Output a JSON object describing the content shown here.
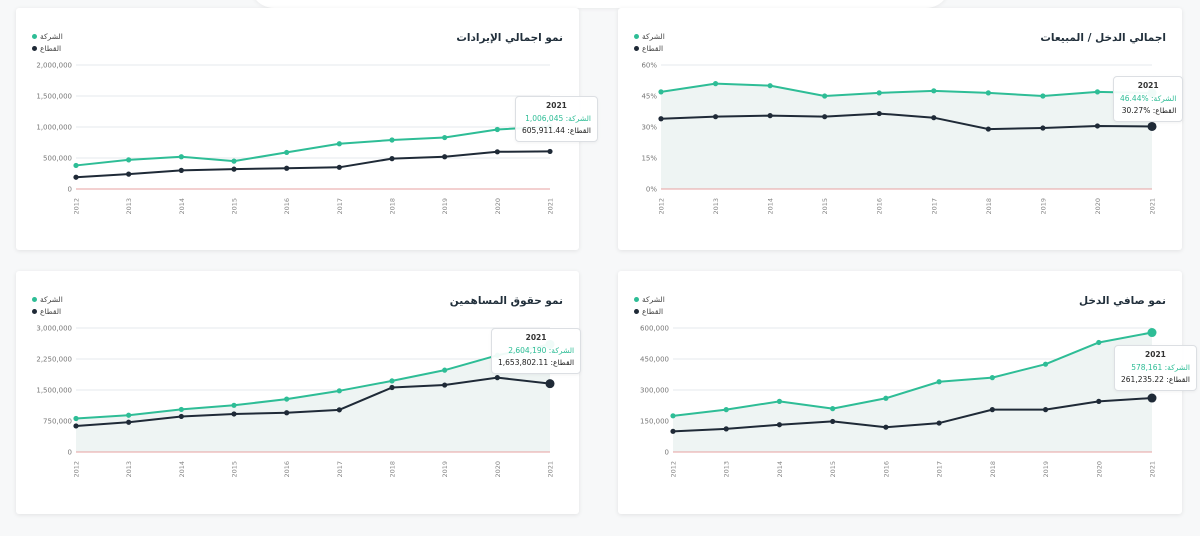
{
  "colors": {
    "company": "#2ebd96",
    "sector": "#1f2a37",
    "zero_line": "#e7a2a2",
    "fill": "#eef4f3",
    "grid": "#e6e9ec"
  },
  "legend": {
    "company_label": "الشركة",
    "sector_label": "القطاع"
  },
  "chart_data": [
    {
      "type": "line",
      "title": "نمو اجمالي الإيرادات",
      "x": [
        "2012",
        "2013",
        "2014",
        "2015",
        "2016",
        "2017",
        "2018",
        "2019",
        "2020",
        "2021"
      ],
      "y_ticks": [
        "0",
        "500,000",
        "1,000,000",
        "1,500,000",
        "2,000,000"
      ],
      "ylim": [
        0,
        2000000
      ],
      "series": [
        {
          "name": "الشركة",
          "values": [
            380000,
            470000,
            520000,
            450000,
            590000,
            730000,
            790000,
            830000,
            960000,
            1006045
          ]
        },
        {
          "name": "القطاع",
          "values": [
            190000,
            240000,
            300000,
            320000,
            335000,
            350000,
            490000,
            520000,
            600000,
            605911.44
          ]
        }
      ],
      "tooltip": {
        "year": "2021",
        "company_label": "الشركة:",
        "company_value": "1,006,045",
        "sector_label": "القطاع:",
        "sector_value": "605,911.44"
      }
    },
    {
      "type": "area",
      "title": "اجمالي الدخل / المبيعات",
      "x": [
        "2012",
        "2013",
        "2014",
        "2015",
        "2016",
        "2017",
        "2018",
        "2019",
        "2020",
        "2021"
      ],
      "y_ticks": [
        "0%",
        "15%",
        "30%",
        "45%",
        "60%"
      ],
      "ylim": [
        0,
        60
      ],
      "series": [
        {
          "name": "الشركة",
          "values": [
            47,
            51,
            50,
            45,
            46.5,
            47.5,
            46.5,
            45,
            47,
            46.44
          ]
        },
        {
          "name": "القطاع",
          "values": [
            34,
            35,
            35.5,
            35,
            36.5,
            34.5,
            29,
            29.5,
            30.5,
            30.27
          ]
        }
      ],
      "tooltip": {
        "year": "2021",
        "company_label": "الشركة:",
        "company_value": "%46.44",
        "sector_label": "القطاع:",
        "sector_value": "%30.27"
      }
    },
    {
      "type": "area",
      "title": "نمو حقوق المساهمين",
      "x": [
        "2012",
        "2013",
        "2014",
        "2015",
        "2016",
        "2017",
        "2018",
        "2019",
        "2020",
        "2021"
      ],
      "y_ticks": [
        "0",
        "750,000",
        "1,500,000",
        "2,250,000",
        "3,000,000"
      ],
      "ylim": [
        0,
        3000000
      ],
      "series": [
        {
          "name": "الشركة",
          "values": [
            810000,
            890000,
            1030000,
            1130000,
            1280000,
            1480000,
            1720000,
            1980000,
            2340000,
            2604190
          ]
        },
        {
          "name": "القطاع",
          "values": [
            630000,
            720000,
            860000,
            920000,
            950000,
            1020000,
            1560000,
            1620000,
            1800000,
            1653802.11
          ]
        }
      ],
      "tooltip": {
        "year": "2021",
        "company_label": "الشركة:",
        "company_value": "2,604,190",
        "sector_label": "القطاع:",
        "sector_value": "1,653,802.11"
      }
    },
    {
      "type": "area",
      "title": "نمو صافي الدخل",
      "x": [
        "2012",
        "2013",
        "2014",
        "2015",
        "2016",
        "2017",
        "2018",
        "2019",
        "2020",
        "2021"
      ],
      "y_ticks": [
        "0",
        "150,000",
        "300,000",
        "450,000",
        "600,000"
      ],
      "ylim": [
        0,
        600000
      ],
      "series": [
        {
          "name": "الشركة",
          "values": [
            175000,
            205000,
            245000,
            210000,
            260000,
            340000,
            360000,
            425000,
            530000,
            578161
          ]
        },
        {
          "name": "القطاع",
          "values": [
            100000,
            112000,
            132000,
            148000,
            120000,
            140000,
            205000,
            205000,
            245000,
            261235.22
          ]
        }
      ],
      "tooltip": {
        "year": "2021",
        "company_label": "الشركة:",
        "company_value": "578,161",
        "sector_label": "القطاع:",
        "sector_value": "261,235.22"
      }
    }
  ]
}
